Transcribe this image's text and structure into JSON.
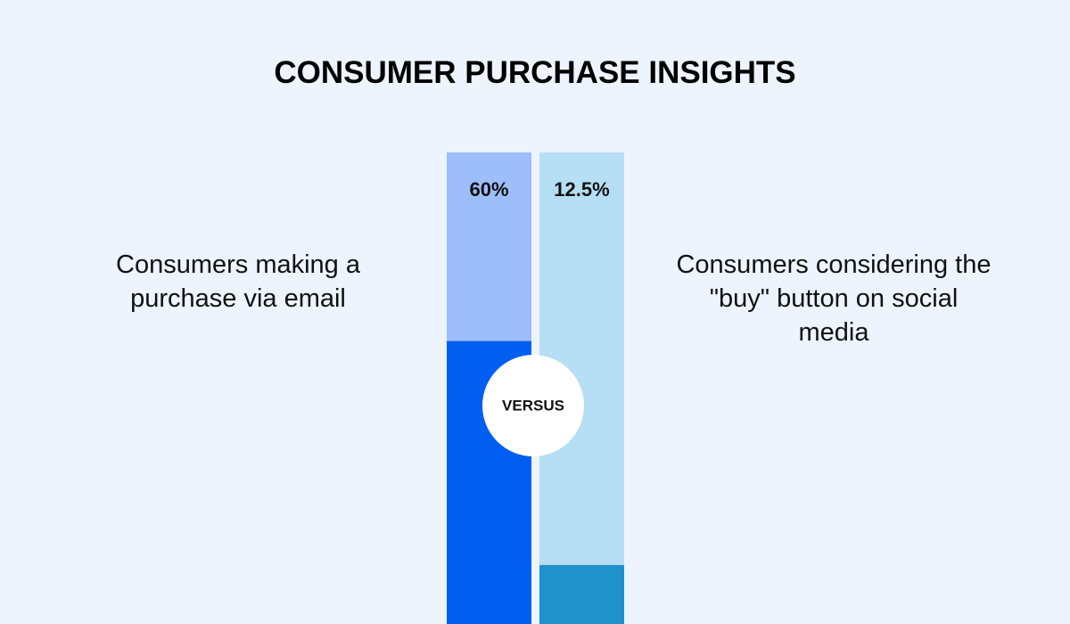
{
  "chart_data": {
    "type": "bar",
    "title": "CONSUMER PURCHASE INSIGHTS",
    "categories": [
      "Consumers making a purchase via email",
      "Consumers considering the \"buy\" button on social media"
    ],
    "values": [
      60,
      12.5
    ],
    "value_labels": [
      "60%",
      "12.5%"
    ],
    "colors": [
      "#005ef0",
      "#1f91cb"
    ],
    "track_colors": [
      "#9dbefa",
      "#b6def4"
    ],
    "ylim": [
      0,
      100
    ],
    "annotation": "VERSUS"
  }
}
